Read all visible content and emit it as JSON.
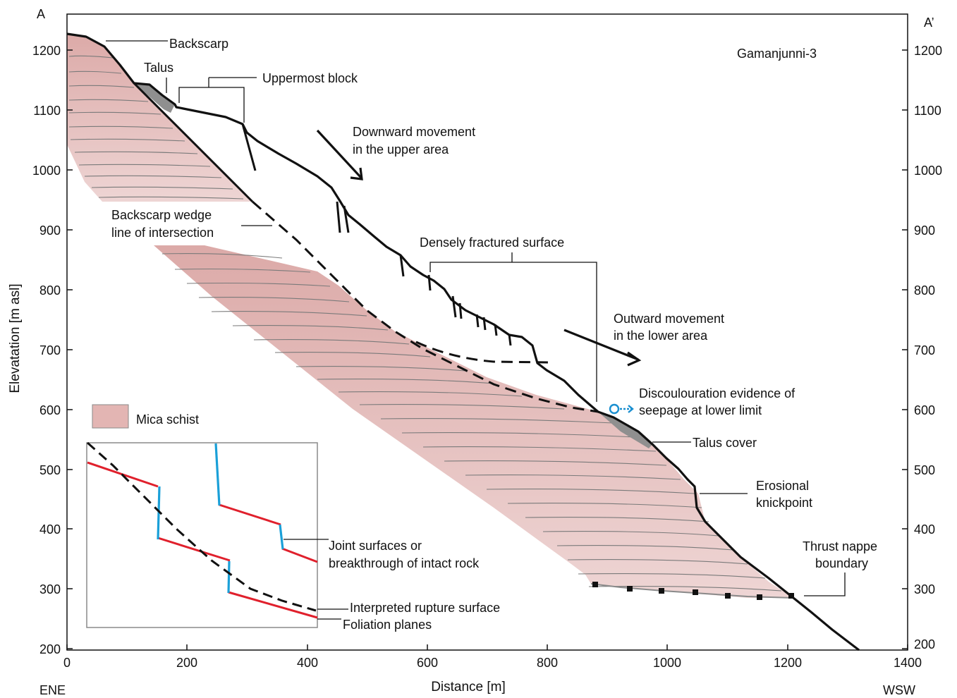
{
  "figure": {
    "profile_name": "Gamanjunni-3",
    "corner_left_top": "A",
    "corner_right_top": "A’",
    "direction_left": "ENE",
    "direction_right": "WSW"
  },
  "axes": {
    "x_title": "Distance [m]",
    "y_title": "Elevatation [m asl]",
    "x_ticks": [
      "0",
      "200",
      "400",
      "600",
      "800",
      "1000",
      "1200",
      "1400"
    ],
    "y_ticks": [
      "200",
      "300",
      "400",
      "500",
      "600",
      "700",
      "800",
      "900",
      "1000",
      "1100",
      "1200"
    ]
  },
  "labels": {
    "backscarp": "Backscarp",
    "talus": "Talus",
    "uppermost_block": "Uppermost block",
    "downward_1": "Downward movement",
    "downward_2": "in the upper area",
    "wedge_1": "Backscarp wedge",
    "wedge_2": "line of intersection",
    "densely_fractured": "Densely fractured surface",
    "outward_1": "Outward movement",
    "outward_2": "in the lower area",
    "discolouration_1": "Discoulouration evidence of",
    "discolouration_2": "seepage at lower limit",
    "talus_cover": "Talus cover",
    "erosional_1": "Erosional",
    "erosional_2": "knickpoint",
    "thrust_1": "Thrust nappe",
    "thrust_2": "boundary"
  },
  "legend": {
    "mica_schist": "Mica schist"
  },
  "inset": {
    "joint_1": "Joint surfaces or",
    "joint_2": "breakthrough of intact rock",
    "rupture": "Interpreted rupture surface",
    "foliation": "Foliation planes"
  },
  "colors": {
    "schist_fill": "#e3b5b3",
    "foliation_lines": "#7a7a7a",
    "profile": "#111111",
    "talus": "#8f8f8f",
    "inset_red": "#e0202c",
    "inset_blue": "#1aa0d8",
    "seepage_icon": "#1a8fd0"
  }
}
